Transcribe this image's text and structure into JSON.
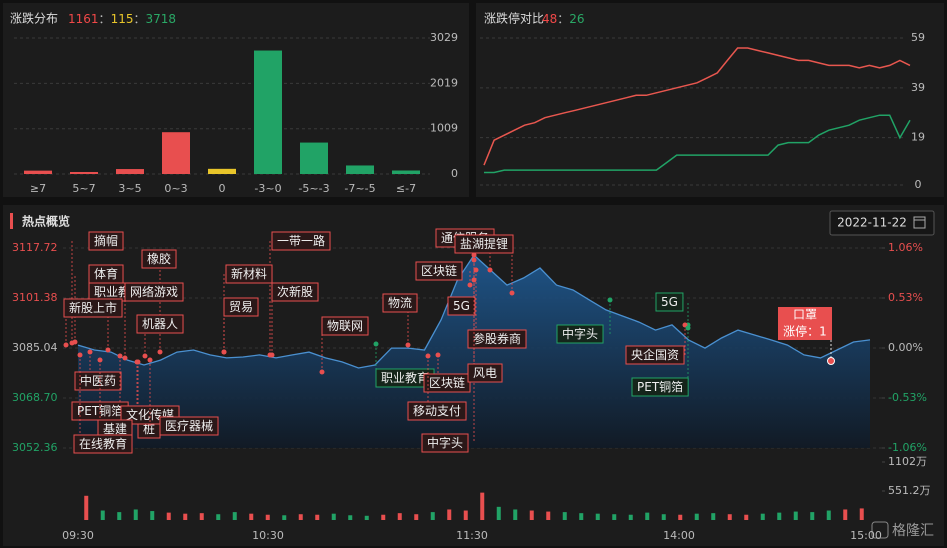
{
  "chart_data": [
    {
      "type": "bar",
      "title": "涨跌分布",
      "summary": [
        {
          "value": 1161,
          "color": "#f04848"
        },
        {
          "value": 115,
          "color": "#e8c52a"
        },
        {
          "value": 3718,
          "color": "#2aa866"
        }
      ],
      "separator": "：",
      "categories": [
        "≥7",
        "5~7",
        "3~5",
        "0~3",
        "0",
        "-3~0",
        "-5~-3",
        "-7~-5",
        "≤-7"
      ],
      "values": [
        75,
        45,
        110,
        931,
        115,
        2750,
        700,
        190,
        78
      ],
      "colors": [
        "#e84f4f",
        "#e84f4f",
        "#e84f4f",
        "#e84f4f",
        "#e8c52a",
        "#21a366",
        "#21a366",
        "#21a366",
        "#21a366"
      ],
      "ylim": [
        0,
        3029
      ],
      "yticks": [
        0,
        1009,
        2019,
        3029
      ],
      "grid": true
    },
    {
      "type": "line",
      "title": "涨跌停对比",
      "summary": [
        {
          "value": 48,
          "color": "#f04848"
        },
        {
          "value": 26,
          "color": "#2aa866"
        }
      ],
      "separator": "：",
      "series": [
        {
          "color": "#e8574f",
          "values": [
            8,
            18,
            20,
            22,
            24,
            25,
            27,
            28,
            29,
            30,
            31,
            32,
            33,
            34,
            35,
            36,
            36,
            37,
            38,
            39,
            40,
            41,
            43,
            45,
            50,
            55,
            55,
            54,
            53,
            52,
            51,
            50,
            50,
            49,
            48,
            48,
            48,
            47,
            48,
            47,
            48,
            50,
            48
          ]
        },
        {
          "color": "#21a366",
          "values": [
            5,
            5,
            6,
            6,
            6,
            6,
            6,
            6,
            6,
            6,
            6,
            6,
            6,
            6,
            6,
            6,
            6,
            6,
            9,
            12,
            12,
            12,
            12,
            12,
            12,
            12,
            12,
            12,
            12,
            16,
            17,
            17,
            17,
            20,
            22,
            23,
            24,
            26,
            27,
            28,
            28,
            19,
            26
          ]
        }
      ],
      "ylim": [
        0,
        59
      ],
      "yticks": [
        0,
        19,
        39,
        59
      ],
      "grid": true
    },
    {
      "type": "area",
      "title": "热点概览",
      "date": "2022-11-22",
      "color": "#4a90d0",
      "values": [
        3086.0,
        3084.4,
        3083.7,
        3081.1,
        3079.5,
        3081.1,
        3083.7,
        3084.4,
        3082.8,
        3081.8,
        3082.1,
        3082.8,
        3081.8,
        3082.8,
        3083.7,
        3081.8,
        3080.5,
        3078.5,
        3079.5,
        3085.0,
        3085.0,
        3084.4,
        3094.2,
        3107.3,
        3115.4,
        3110.5,
        3105.6,
        3107.9,
        3111.2,
        3105.6,
        3104.0,
        3100.7,
        3097.5,
        3095.5,
        3093.5,
        3090.9,
        3092.6,
        3087.7,
        3085.0,
        3088.3,
        3090.9,
        3089.3,
        3087.7,
        3086.0,
        3082.8,
        3081.8,
        3084.4,
        3087.0,
        3087.7
      ],
      "ylim": [
        3052.36,
        3117.72
      ],
      "yticks": [
        3052.36,
        {
          "value": 3068.7,
          "label": "3068.70"
        },
        3085.04,
        3101.38,
        3117.72
      ],
      "y2lim": [
        -1.06,
        1.06
      ],
      "y2ticks": [
        {
          "value": -1.06,
          "label": "-1.06%"
        },
        {
          "value": -0.53,
          "label": "-0.53%"
        },
        {
          "value": 0,
          "label": "0.00%"
        },
        {
          "value": 0.53,
          "label": "0.53%"
        },
        {
          "value": 1.06,
          "label": "1.06%"
        }
      ],
      "xticks": [
        "09:30",
        "10:30",
        "11:30",
        "14:00",
        "15:00"
      ],
      "volume": {
        "ylim": [
          0,
          1102
        ],
        "yticks": [
          {
            "value": 551.2,
            "label": "551.2万"
          },
          {
            "value": 1102,
            "label": "1102万"
          }
        ],
        "values": [
          460,
          180,
          150,
          200,
          170,
          140,
          120,
          130,
          110,
          150,
          120,
          100,
          90,
          110,
          100,
          120,
          90,
          80,
          100,
          130,
          110,
          150,
          200,
          180,
          520,
          250,
          200,
          180,
          160,
          150,
          130,
          120,
          110,
          100,
          140,
          110,
          100,
          120,
          130,
          110,
          100,
          120,
          140,
          160,
          150,
          180,
          200,
          220
        ],
        "colors": [
          "#e84f4f",
          "#21a366",
          "#21a366",
          "#21a366",
          "#21a366",
          "#e84f4f",
          "#e84f4f",
          "#e84f4f",
          "#21a366",
          "#21a366",
          "#e84f4f",
          "#e84f4f",
          "#21a366",
          "#e84f4f",
          "#e84f4f",
          "#21a366",
          "#21a366",
          "#21a366",
          "#e84f4f",
          "#e84f4f",
          "#e84f4f",
          "#21a366",
          "#e84f4f",
          "#e84f4f",
          "#e84f4f",
          "#21a366",
          "#21a366",
          "#e84f4f",
          "#e84f4f",
          "#21a366",
          "#21a366",
          "#21a366",
          "#21a366",
          "#21a366",
          "#21a366",
          "#21a366",
          "#e84f4f",
          "#21a366",
          "#21a366",
          "#e84f4f",
          "#e84f4f",
          "#21a366",
          "#21a366",
          "#21a366",
          "#21a366",
          "#21a366",
          "#e84f4f",
          "#e84f4f"
        ]
      },
      "tags": [
        {
          "text": "摘帽",
          "color": "#e84f4f"
        },
        {
          "text": "橡胶",
          "color": "#e84f4f"
        },
        {
          "text": "体育",
          "color": "#e84f4f"
        },
        {
          "text": "职业教",
          "color": "#e84f4f"
        },
        {
          "text": "网络游戏",
          "color": "#e84f4f"
        },
        {
          "text": "新股上市",
          "color": "#e84f4f"
        },
        {
          "text": "机器人",
          "color": "#e84f4f"
        },
        {
          "text": "中医药",
          "color": "#e84f4f"
        },
        {
          "text": "PET铜箔",
          "color": "#e84f4f"
        },
        {
          "text": "桩",
          "color": "#e84f4f"
        },
        {
          "text": "文化传媒",
          "color": "#e84f4f"
        },
        {
          "text": "基建",
          "color": "#e84f4f"
        },
        {
          "text": "医疗器械",
          "color": "#e84f4f"
        },
        {
          "text": "在线教育",
          "color": "#e84f4f"
        },
        {
          "text": "一带一路",
          "color": "#e84f4f"
        },
        {
          "text": "新材料",
          "color": "#e84f4f"
        },
        {
          "text": "次新股",
          "color": "#e84f4f"
        },
        {
          "text": "贸易",
          "color": "#e84f4f"
        },
        {
          "text": "物联网",
          "color": "#e84f4f"
        },
        {
          "text": "物流",
          "color": "#e84f4f"
        },
        {
          "text": "职业教育",
          "color": "#21a366"
        },
        {
          "text": "区块链",
          "color": "#e84f4f"
        },
        {
          "text": "移动支付",
          "color": "#e84f4f"
        },
        {
          "text": "中字头",
          "color": "#e84f4f"
        },
        {
          "text": "通信服务",
          "color": "#e84f4f"
        },
        {
          "text": "盐湖提锂",
          "color": "#e84f4f"
        },
        {
          "text": "区块链",
          "color": "#e84f4f"
        },
        {
          "text": "5G",
          "color": "#e84f4f"
        },
        {
          "text": "参股券商",
          "color": "#e84f4f"
        },
        {
          "text": "风电",
          "color": "#e84f4f"
        },
        {
          "text": "中字头",
          "color": "#21a366"
        },
        {
          "text": "5G",
          "color": "#21a366"
        },
        {
          "text": "央企国资",
          "color": "#e84f4f"
        },
        {
          "text": "PET铜箔",
          "color": "#21a366"
        }
      ],
      "popup": {
        "title": "口罩",
        "text": "涨停：1"
      },
      "watermark": "格隆汇"
    }
  ]
}
